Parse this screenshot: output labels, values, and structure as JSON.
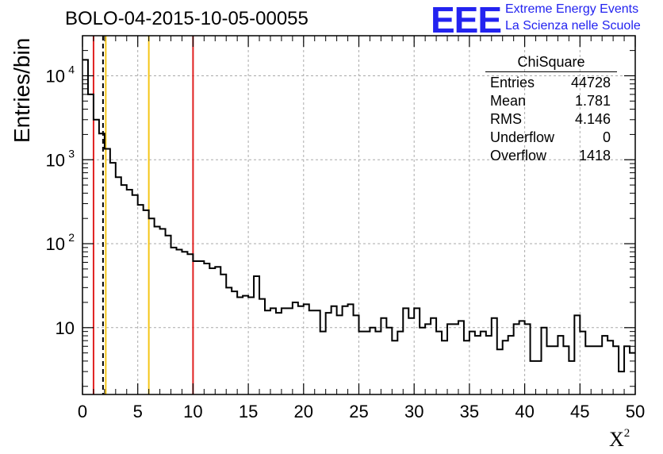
{
  "chart_data": {
    "type": "histogram",
    "title": "BOLO-04-2015-10-05-00055",
    "xlabel": "X",
    "xlabel_superscript": "2",
    "ylabel": "Entries/bin",
    "yscale": "log",
    "xlim": [
      0,
      50
    ],
    "ylim": [
      1.6,
      30000
    ],
    "bin_width": 0.5,
    "x_ticks": [
      "0",
      "5",
      "10",
      "15",
      "20",
      "25",
      "30",
      "35",
      "40",
      "45",
      "50"
    ],
    "y_ticks": [
      {
        "value": 10,
        "label": "10",
        "sup": ""
      },
      {
        "value": 100,
        "label": "10",
        "sup": "2"
      },
      {
        "value": 1000,
        "label": "10",
        "sup": "3"
      },
      {
        "value": 10000,
        "label": "10",
        "sup": "4"
      }
    ],
    "grid": true,
    "bin_values": [
      15500,
      6000,
      3000,
      2050,
      1350,
      920,
      620,
      500,
      440,
      380,
      290,
      250,
      200,
      160,
      150,
      125,
      90,
      85,
      80,
      75,
      62,
      62,
      58,
      51,
      53,
      43,
      30,
      27,
      23,
      24,
      23,
      41,
      22,
      16,
      17,
      15,
      17,
      17,
      20,
      18,
      19,
      16,
      16,
      9,
      15,
      18,
      14,
      18,
      19,
      14,
      9,
      9,
      10,
      9,
      13,
      10,
      7,
      9,
      17,
      13,
      17,
      10,
      11,
      13,
      9,
      7,
      11,
      11,
      12,
      7,
      9,
      8,
      9,
      8,
      13,
      5.5,
      7,
      8,
      11,
      12,
      11,
      4,
      4,
      10,
      6,
      6,
      8,
      6,
      4,
      14,
      9,
      6,
      6,
      6,
      8,
      7,
      6,
      3,
      6,
      5
    ],
    "vertical_lines": [
      {
        "x": 1,
        "color": "#e02020",
        "style": "solid"
      },
      {
        "x": 2,
        "color": "#000000",
        "style": "dashed"
      },
      {
        "x": 2,
        "color": "#f5c518",
        "style": "solid"
      },
      {
        "x": 6,
        "color": "#f5c518",
        "style": "solid"
      },
      {
        "x": 10,
        "color": "#e02020",
        "style": "solid"
      }
    ]
  },
  "stats_box": {
    "title": "ChiSquare",
    "rows": [
      {
        "label": "Entries",
        "value": "44728"
      },
      {
        "label": "Mean",
        "value": "1.781"
      },
      {
        "label": "RMS",
        "value": "4.146"
      },
      {
        "label": "Underflow",
        "value": "0"
      },
      {
        "label": "Overflow",
        "value": "1418"
      }
    ]
  },
  "logo": {
    "mark": "EEE",
    "line1": "Extreme Energy Events",
    "line2": "La Scienza nelle Scuole",
    "color": "#2323f0"
  },
  "colors": {
    "grid": "#aaaaaa",
    "frame": "#000000",
    "histogram": "#000000"
  }
}
